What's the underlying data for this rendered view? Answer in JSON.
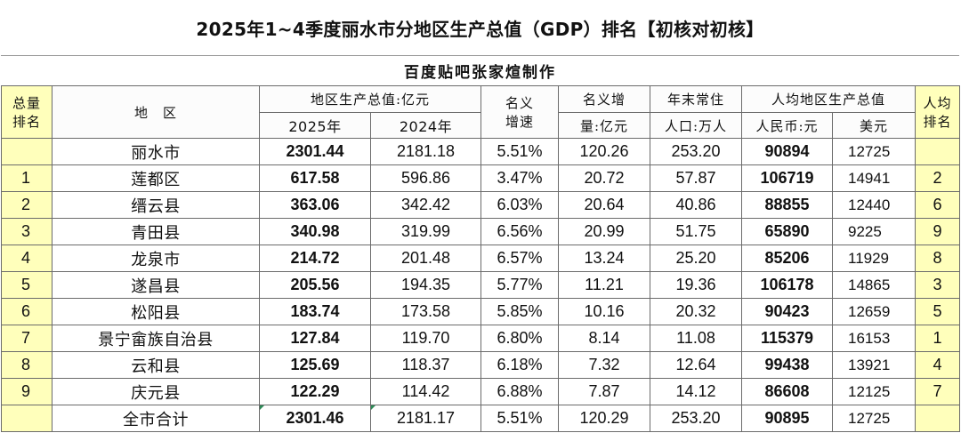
{
  "title": "2025年1~4季度丽水市分地区生产总值（GDP）排名【初核对初核】",
  "subtitle": "百度贴吧张家煊制作",
  "headers": {
    "rank_total": [
      "总量",
      "排名"
    ],
    "region": "地　区",
    "gdp_group": "地区生产总值:亿元",
    "gdp_2025": "2025年",
    "gdp_2024": "2024年",
    "nominal_growth": [
      "名义",
      "增速"
    ],
    "nominal_increase": [
      "名义增",
      "量:亿元"
    ],
    "population": [
      "年末常住",
      "人口:万人"
    ],
    "per_capita_group": "人均地区生产总值",
    "per_capita_rmb": "人民币:元",
    "per_capita_usd": "美元",
    "rank_per_capita": [
      "人均",
      "排名"
    ]
  },
  "rows": [
    {
      "rank": "",
      "region": "丽水市",
      "gdp_2025": "2301.44",
      "gdp_2024": "2181.18",
      "growth": "5.51%",
      "increase": "120.26",
      "population": "253.20",
      "per_capita_rmb": "90894",
      "per_capita_usd": "12725",
      "pc_rank": ""
    },
    {
      "rank": "1",
      "region": "莲都区",
      "gdp_2025": "617.58",
      "gdp_2024": "596.86",
      "growth": "3.47%",
      "increase": "20.72",
      "population": "57.87",
      "per_capita_rmb": "106719",
      "per_capita_usd": "14941",
      "pc_rank": "2"
    },
    {
      "rank": "2",
      "region": "缙云县",
      "gdp_2025": "363.06",
      "gdp_2024": "342.42",
      "growth": "6.03%",
      "increase": "20.64",
      "population": "40.86",
      "per_capita_rmb": "88855",
      "per_capita_usd": "12440",
      "pc_rank": "6"
    },
    {
      "rank": "3",
      "region": "青田县",
      "gdp_2025": "340.98",
      "gdp_2024": "319.99",
      "growth": "6.56%",
      "increase": "20.99",
      "population": "51.75",
      "per_capita_rmb": "65890",
      "per_capita_usd": "9225",
      "pc_rank": "9"
    },
    {
      "rank": "4",
      "region": "龙泉市",
      "gdp_2025": "214.72",
      "gdp_2024": "201.48",
      "growth": "6.57%",
      "increase": "13.24",
      "population": "25.20",
      "per_capita_rmb": "85206",
      "per_capita_usd": "11929",
      "pc_rank": "8"
    },
    {
      "rank": "5",
      "region": "遂昌县",
      "gdp_2025": "205.56",
      "gdp_2024": "194.35",
      "growth": "5.77%",
      "increase": "11.21",
      "population": "19.36",
      "per_capita_rmb": "106178",
      "per_capita_usd": "14865",
      "pc_rank": "3"
    },
    {
      "rank": "6",
      "region": "松阳县",
      "gdp_2025": "183.74",
      "gdp_2024": "173.58",
      "growth": "5.85%",
      "increase": "10.16",
      "population": "20.32",
      "per_capita_rmb": "90423",
      "per_capita_usd": "12659",
      "pc_rank": "5"
    },
    {
      "rank": "7",
      "region": "景宁畲族自治县",
      "gdp_2025": "127.84",
      "gdp_2024": "119.70",
      "growth": "6.80%",
      "increase": "8.14",
      "population": "11.08",
      "per_capita_rmb": "115379",
      "per_capita_usd": "16153",
      "pc_rank": "1"
    },
    {
      "rank": "8",
      "region": "云和县",
      "gdp_2025": "125.69",
      "gdp_2024": "118.37",
      "growth": "6.18%",
      "increase": "7.32",
      "population": "12.64",
      "per_capita_rmb": "99438",
      "per_capita_usd": "13921",
      "pc_rank": "4"
    },
    {
      "rank": "9",
      "region": "庆元县",
      "gdp_2025": "122.29",
      "gdp_2024": "114.42",
      "growth": "6.88%",
      "increase": "7.87",
      "population": "14.12",
      "per_capita_rmb": "86608",
      "per_capita_usd": "12125",
      "pc_rank": "7"
    },
    {
      "rank": "",
      "region": "全市合计",
      "gdp_2025": "2301.46",
      "gdp_2024": "2181.17",
      "growth": "5.51%",
      "increase": "120.29",
      "population": "253.20",
      "per_capita_rmb": "90895",
      "per_capita_usd": "12725",
      "pc_rank": ""
    }
  ],
  "colors": {
    "rank_column_fill": "#ffffbb",
    "grid_line": "#6b6b6b",
    "cell_note_marker": "#2e8b57"
  }
}
